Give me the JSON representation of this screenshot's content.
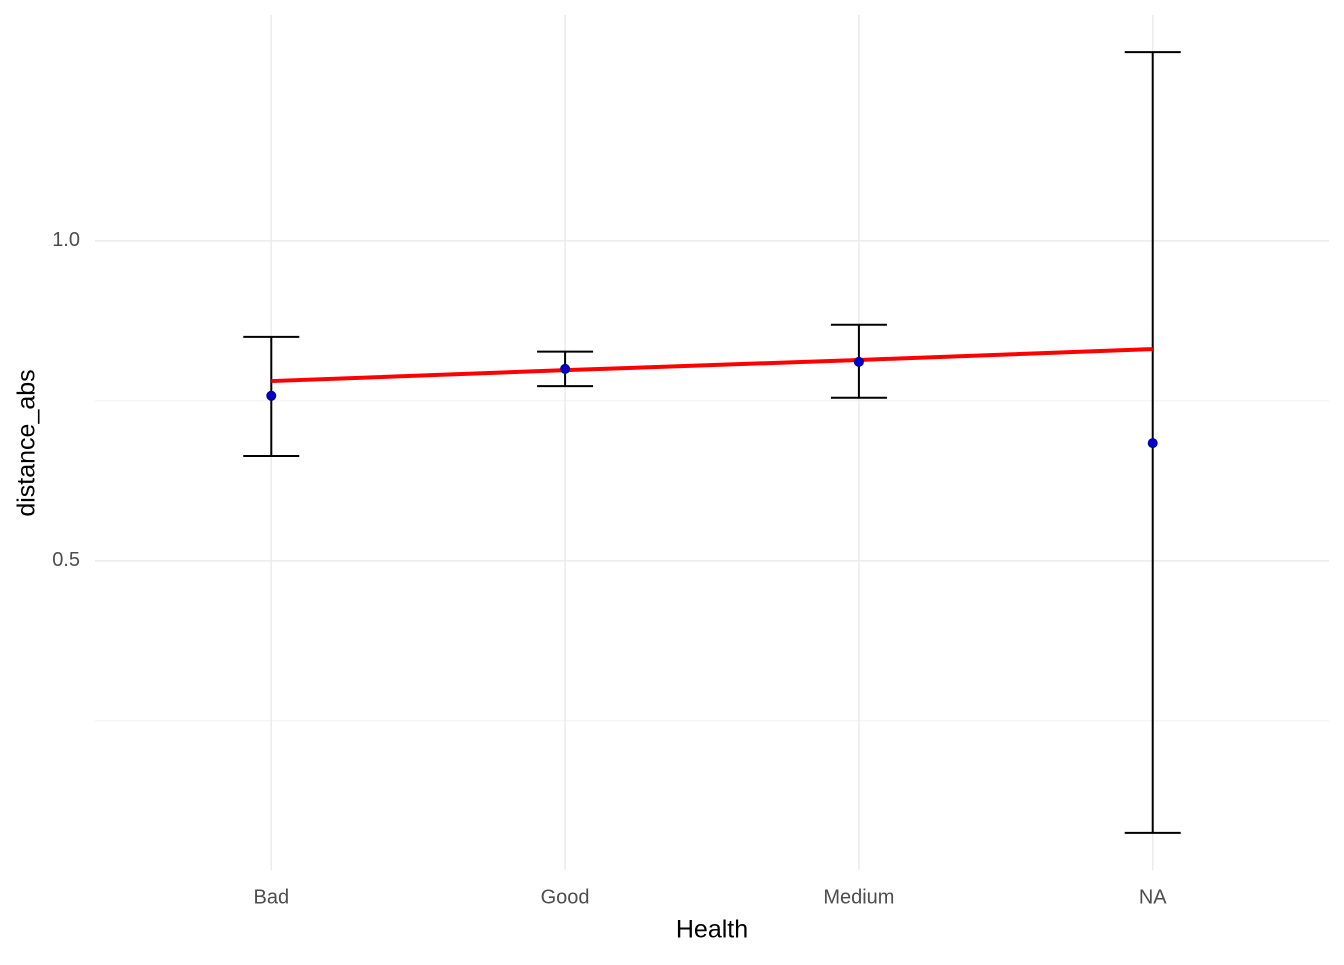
{
  "chart_data": {
    "type": "errorbar",
    "x_label": "Health",
    "y_label": "distance_abs",
    "categories": [
      "Bad",
      "Good",
      "Medium",
      "NA"
    ],
    "values": [
      0.758,
      0.8,
      0.811,
      0.684
    ],
    "lower": [
      0.664,
      0.773,
      0.755,
      0.075
    ],
    "upper": [
      0.85,
      0.827,
      0.869,
      1.295
    ],
    "color": "#0000cd",
    "errorbar_color": "#000000",
    "fit": {
      "color": "#ff0000",
      "values": [
        0.781,
        0.798,
        0.814,
        0.831
      ]
    },
    "ylim": [
      0.017,
      1.353
    ],
    "yticks": [
      0.5,
      {
        "value": 1,
        "label": "1.0"
      }
    ],
    "minor_yticks": [
      0.25,
      0.75
    ],
    "grid": true
  }
}
